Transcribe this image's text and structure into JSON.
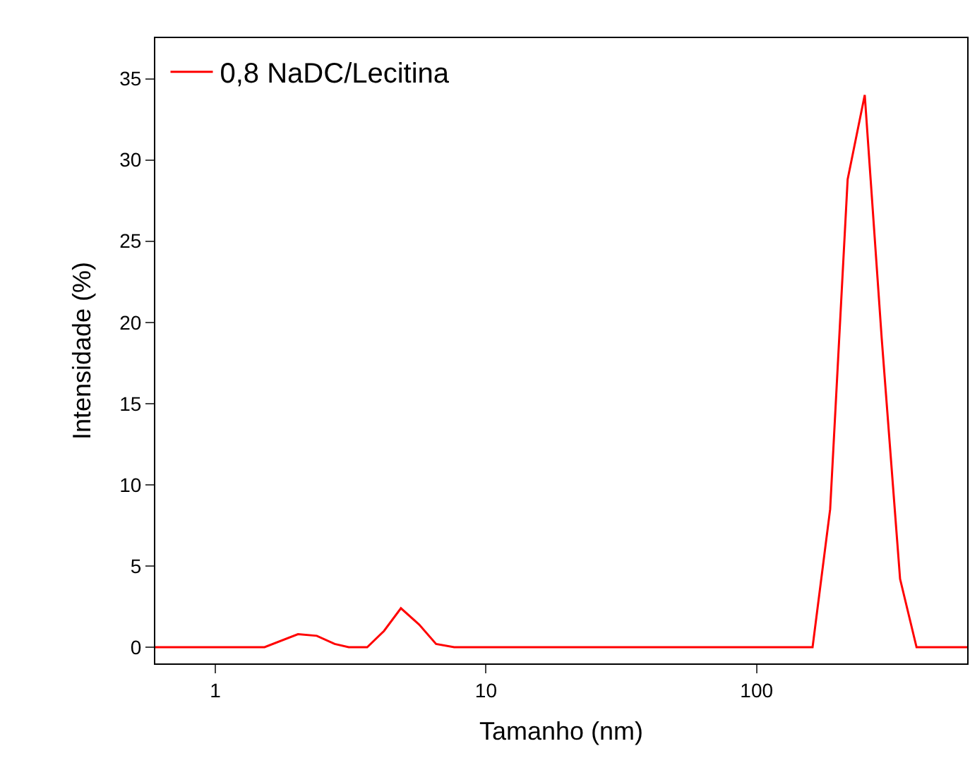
{
  "chart_data": {
    "type": "line",
    "xlabel": "Tamanho (nm)",
    "ylabel": "Intensidade (%)",
    "log": "x",
    "x": [
      0.6,
      1.52,
      2.02,
      2.37,
      2.76,
      3.11,
      3.64,
      4.2,
      4.85,
      5.66,
      6.54,
      7.63,
      161,
      187,
      217,
      251,
      290,
      339,
      390,
      600
    ],
    "series": [
      {
        "name": "0,8 NaDC/Lecitina",
        "color": "#ff0000",
        "values": [
          0,
          0,
          0.8,
          0.7,
          0.2,
          0,
          0,
          1.0,
          2.4,
          1.4,
          0.2,
          0,
          0,
          8.5,
          28.8,
          34.0,
          19,
          4.2,
          0,
          0
        ]
      }
    ],
    "xlim": [
      0.6,
      600
    ],
    "xticks": [
      1,
      10,
      100
    ],
    "ylim": [
      -1,
      37.5
    ],
    "yticks": [
      0,
      5,
      10,
      15,
      20,
      25,
      30,
      35
    ],
    "legend": "top left",
    "marker": "none",
    "line_style": "solid"
  }
}
